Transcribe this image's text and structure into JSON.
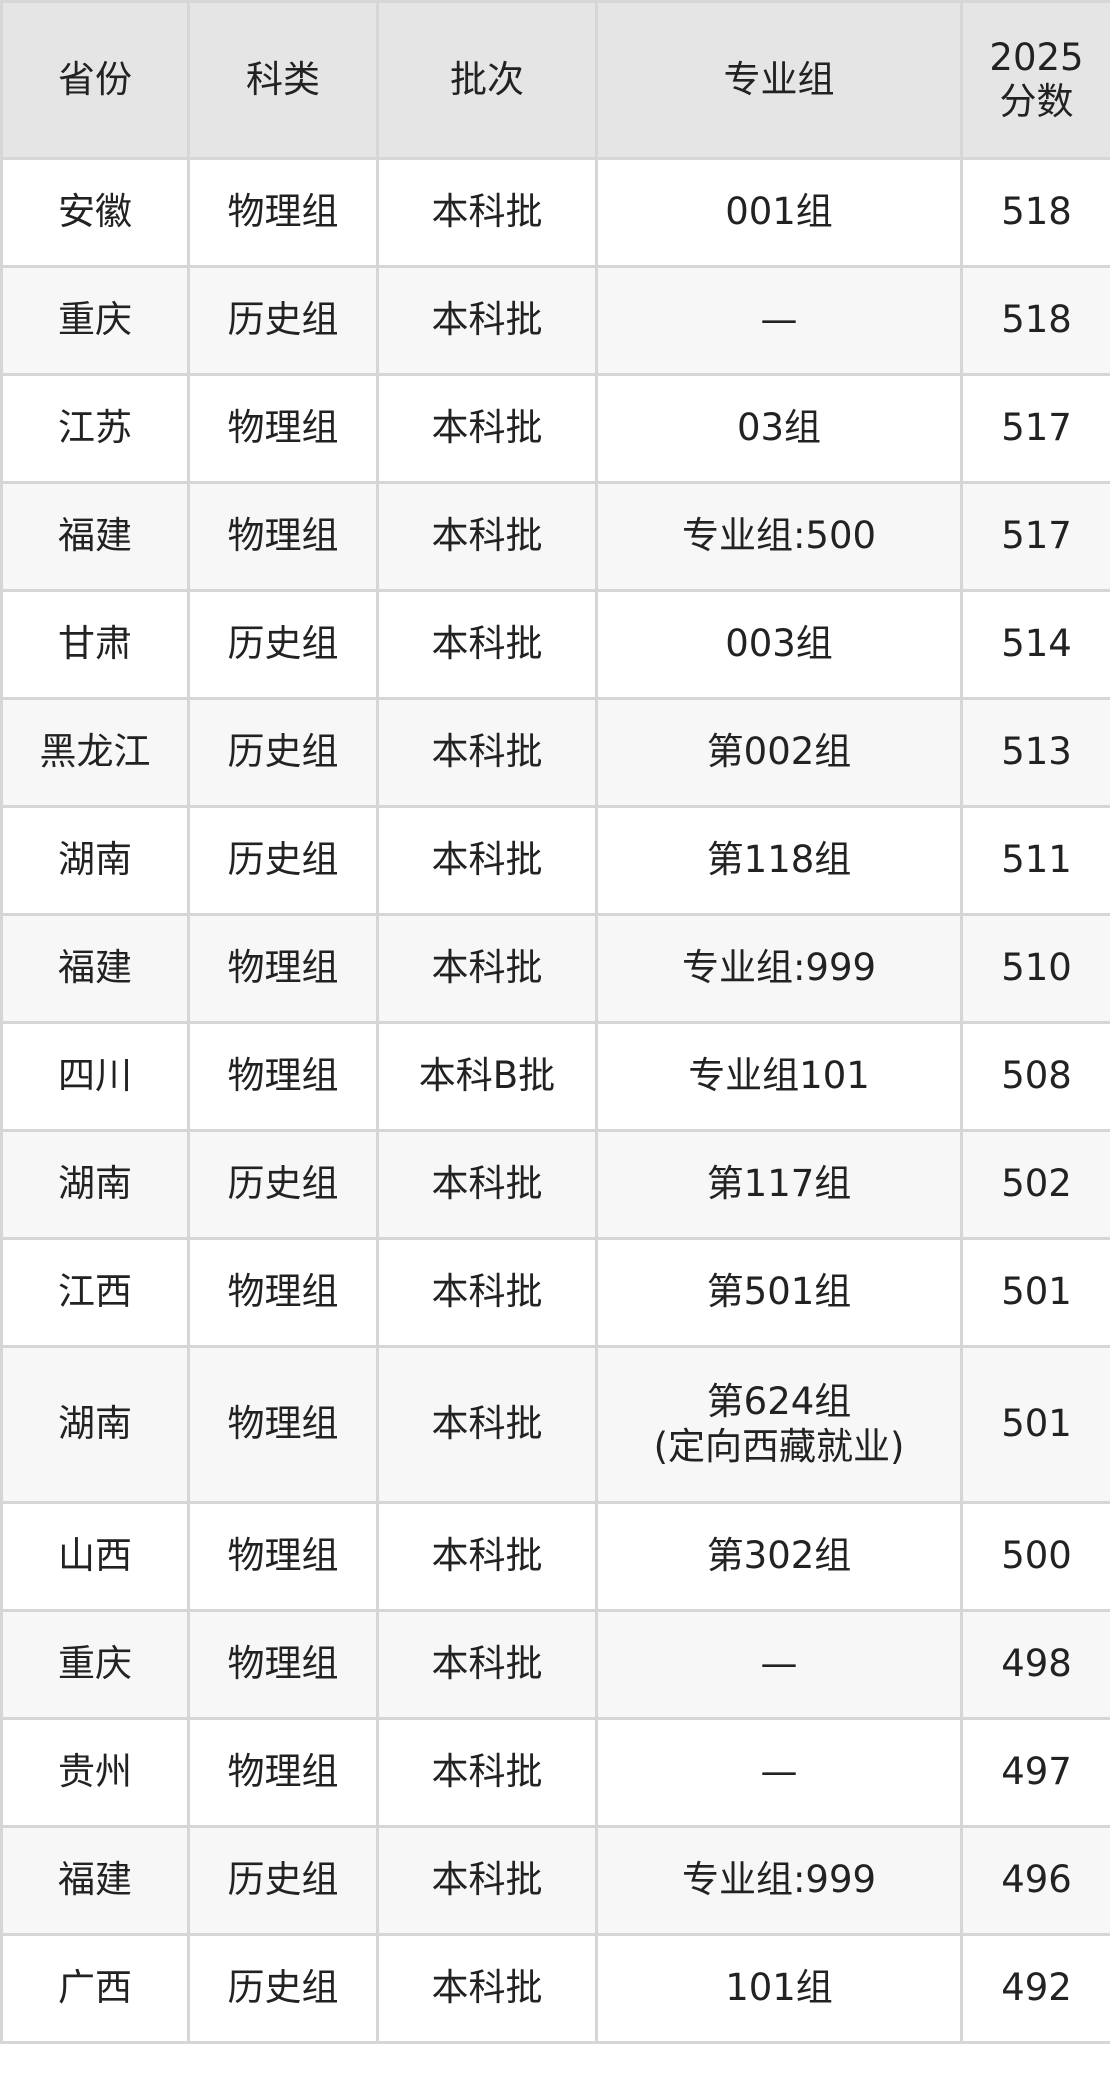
{
  "header": {
    "province": "省份",
    "category": "科类",
    "batch": "批次",
    "group": "专业组",
    "score_line1": "2025",
    "score_line2": "分数"
  },
  "rows": [
    {
      "province": "安徽",
      "category": "物理组",
      "batch": "本科批",
      "group": "001组",
      "score": "518"
    },
    {
      "province": "重庆",
      "category": "历史组",
      "batch": "本科批",
      "group": "—",
      "score": "518"
    },
    {
      "province": "江苏",
      "category": "物理组",
      "batch": "本科批",
      "group": "03组",
      "score": "517"
    },
    {
      "province": "福建",
      "category": "物理组",
      "batch": "本科批",
      "group": "专业组:500",
      "score": "517"
    },
    {
      "province": "甘肃",
      "category": "历史组",
      "batch": "本科批",
      "group": "003组",
      "score": "514"
    },
    {
      "province": "黑龙江",
      "category": "历史组",
      "batch": "本科批",
      "group": "第002组",
      "score": "513"
    },
    {
      "province": "湖南",
      "category": "历史组",
      "batch": "本科批",
      "group": "第118组",
      "score": "511"
    },
    {
      "province": "福建",
      "category": "物理组",
      "batch": "本科批",
      "group": "专业组:999",
      "score": "510"
    },
    {
      "province": "四川",
      "category": "物理组",
      "batch": "本科B批",
      "group": "专业组101",
      "score": "508"
    },
    {
      "province": "湖南",
      "category": "历史组",
      "batch": "本科批",
      "group": "第117组",
      "score": "502"
    },
    {
      "province": "江西",
      "category": "物理组",
      "batch": "本科批",
      "group": "第501组",
      "score": "501"
    },
    {
      "province": "湖南",
      "category": "物理组",
      "batch": "本科批",
      "group": "第624组",
      "group_note": "(定向西藏就业)",
      "score": "501"
    },
    {
      "province": "山西",
      "category": "物理组",
      "batch": "本科批",
      "group": "第302组",
      "score": "500"
    },
    {
      "province": "重庆",
      "category": "物理组",
      "batch": "本科批",
      "group": "—",
      "score": "498"
    },
    {
      "province": "贵州",
      "category": "物理组",
      "batch": "本科批",
      "group": "—",
      "score": "497"
    },
    {
      "province": "福建",
      "category": "历史组",
      "batch": "本科批",
      "group": "专业组:999",
      "score": "496"
    },
    {
      "province": "广西",
      "category": "历史组",
      "batch": "本科批",
      "group": "101组",
      "score": "492"
    }
  ]
}
